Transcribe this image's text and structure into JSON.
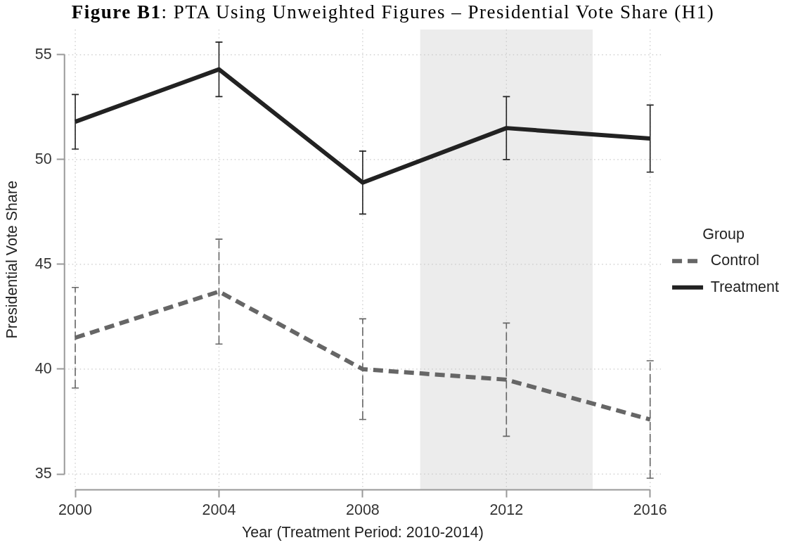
{
  "chart_data": {
    "type": "line",
    "title": "Figure B1: PTA Using Unweighted Figures – Presidential Vote Share (H1)",
    "xlabel": "Year (Treatment Period: 2010-2014)",
    "ylabel": "Presidential Vote Share",
    "legend_title": "Group",
    "x": [
      2000,
      2004,
      2008,
      2012,
      2016
    ],
    "series": [
      {
        "name": "Control",
        "color": "#666666",
        "line_style": "dashed",
        "values": [
          41.5,
          43.7,
          40.0,
          39.5,
          37.6
        ],
        "errors": [
          2.4,
          2.5,
          2.4,
          2.7,
          2.8
        ]
      },
      {
        "name": "Treatment",
        "color": "#222222",
        "line_style": "solid",
        "values": [
          51.8,
          54.3,
          48.9,
          51.5,
          51.0
        ],
        "errors": [
          1.3,
          1.3,
          1.5,
          1.5,
          1.6
        ]
      }
    ],
    "xlim": [
      1999.7,
      2016.3
    ],
    "xticks": [
      2000,
      2004,
      2008,
      2012,
      2016
    ],
    "ylim": [
      34.25,
      56.2
    ],
    "yticks": [
      35,
      40,
      45,
      50,
      55
    ],
    "grid": true,
    "legend": "right",
    "marker": "none",
    "bands": [
      {
        "axis": "x",
        "from": 2009.6,
        "to": 2014.4,
        "color": "#ececec"
      }
    ]
  }
}
